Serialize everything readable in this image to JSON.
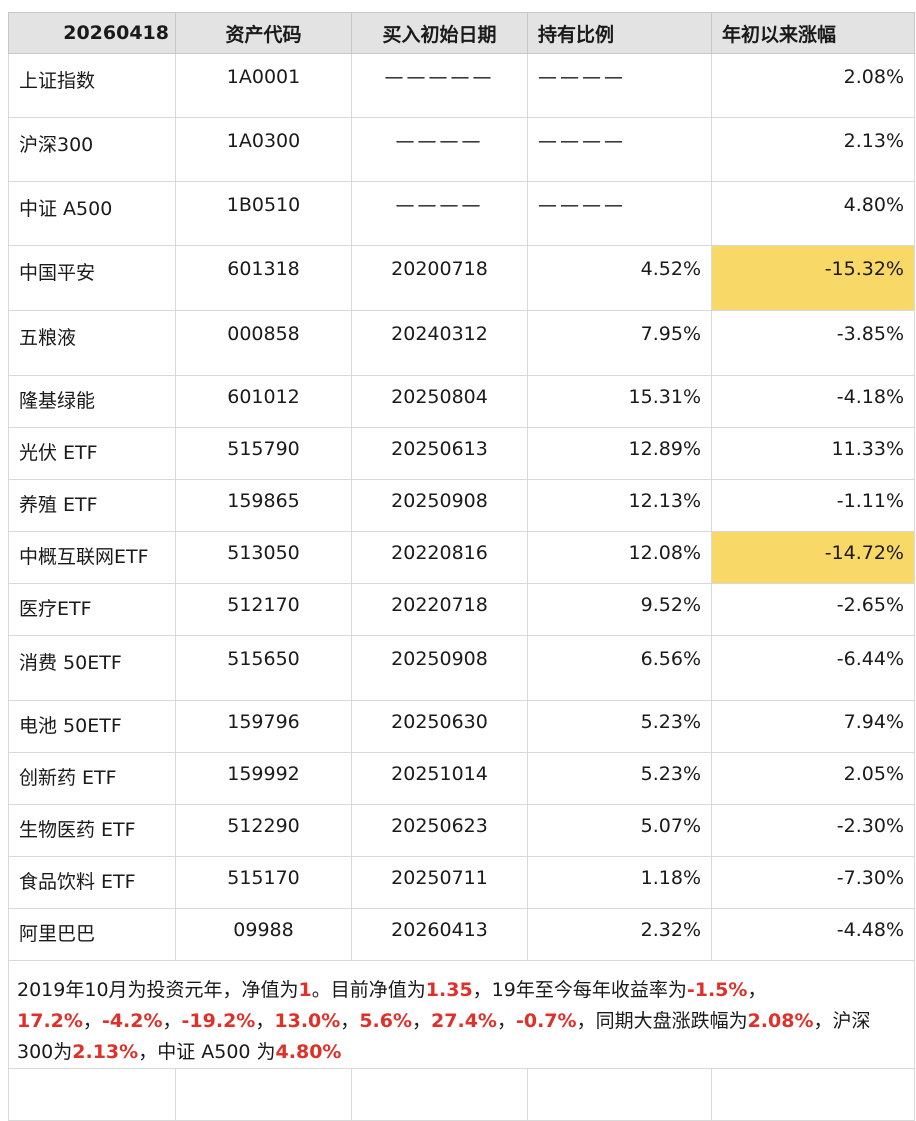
{
  "sheet": {
    "header": {
      "date": "20260418",
      "code": "资产代码",
      "buy_date": "买入初始日期",
      "ratio": "持有比例",
      "ytd": "年初以来涨幅"
    },
    "rows": [
      {
        "name": "上证指数",
        "code": "1A0001",
        "date": "—————",
        "ratio": "————",
        "ytd": "2.08%"
      },
      {
        "name": "沪深300",
        "code": "1A0300",
        "date": "————",
        "ratio": "————",
        "ytd": "2.13%"
      },
      {
        "name": "中证 A500",
        "code": "1B0510",
        "date": "————",
        "ratio": "————",
        "ytd": "4.80%"
      },
      {
        "name": "中国平安",
        "code": "601318",
        "date": "20200718",
        "ratio": "4.52%",
        "ytd": "-15.32%"
      },
      {
        "name": "五粮液",
        "code": "000858",
        "date": "20240312",
        "ratio": "7.95%",
        "ytd": "-3.85%"
      },
      {
        "name": "隆基绿能",
        "code": "601012",
        "date": "20250804",
        "ratio": "15.31%",
        "ytd": "-4.18%"
      },
      {
        "name": "光伏 ETF",
        "code": "515790",
        "date": "20250613",
        "ratio": "12.89%",
        "ytd": "11.33%"
      },
      {
        "name": "养殖 ETF",
        "code": "159865",
        "date": "20250908",
        "ratio": "12.13%",
        "ytd": "-1.11%"
      },
      {
        "name": "中概互联网ETF",
        "code": "513050",
        "date": "20220816",
        "ratio": "12.08%",
        "ytd": "-14.72%"
      },
      {
        "name": "医疗ETF",
        "code": "512170",
        "date": "20220718",
        "ratio": "9.52%",
        "ytd": "-2.65%"
      },
      {
        "name": "消费 50ETF",
        "code": "515650",
        "date": "20250908",
        "ratio": "6.56%",
        "ytd": "-6.44%"
      },
      {
        "name": "电池 50ETF",
        "code": "159796",
        "date": "20250630",
        "ratio": "5.23%",
        "ytd": "7.94%"
      },
      {
        "name": "创新药 ETF",
        "code": "159992",
        "date": "20251014",
        "ratio": "5.23%",
        "ytd": "2.05%"
      },
      {
        "name": "生物医药 ETF",
        "code": "512290",
        "date": "20250623",
        "ratio": "5.07%",
        "ytd": "-2.30%"
      },
      {
        "name": "食品饮料 ETF",
        "code": "515170",
        "date": "20250711",
        "ratio": "1.18%",
        "ytd": "-7.30%"
      },
      {
        "name": "阿里巴巴",
        "code": "09988",
        "date": "20260413",
        "ratio": "2.32%",
        "ytd": "-4.48%"
      }
    ],
    "note": [
      {
        "t": "2019年10月为投资元年，净值为",
        "hot": false
      },
      {
        "t": "1",
        "hot": true
      },
      {
        "t": "。目前净值为",
        "hot": false
      },
      {
        "t": "1.35",
        "hot": true
      },
      {
        "t": "，19年至今每年收益率为",
        "hot": false
      },
      {
        "t": "-1.5%",
        "hot": true
      },
      {
        "t": "，",
        "hot": false
      },
      {
        "t": "17.2%",
        "hot": true
      },
      {
        "t": "，",
        "hot": false
      },
      {
        "t": "-4.2%",
        "hot": true
      },
      {
        "t": "，",
        "hot": false
      },
      {
        "t": "-19.2%",
        "hot": true
      },
      {
        "t": "，",
        "hot": false
      },
      {
        "t": "13.0%",
        "hot": true
      },
      {
        "t": "，",
        "hot": false
      },
      {
        "t": "5.6%",
        "hot": true
      },
      {
        "t": "，",
        "hot": false
      },
      {
        "t": "27.4%",
        "hot": true
      },
      {
        "t": "，",
        "hot": false
      },
      {
        "t": "-0.7%",
        "hot": true
      },
      {
        "t": "，同期大盘涨跌幅为",
        "hot": false
      },
      {
        "t": "2.08%",
        "hot": true
      },
      {
        "t": "，沪深300为",
        "hot": false
      },
      {
        "t": "2.13%",
        "hot": true
      },
      {
        "t": "，中证 A500 为",
        "hot": false
      },
      {
        "t": "4.80%",
        "hot": true
      }
    ],
    "highlight_color": "#f8d866",
    "emphasis_color": "#e0302a"
  }
}
